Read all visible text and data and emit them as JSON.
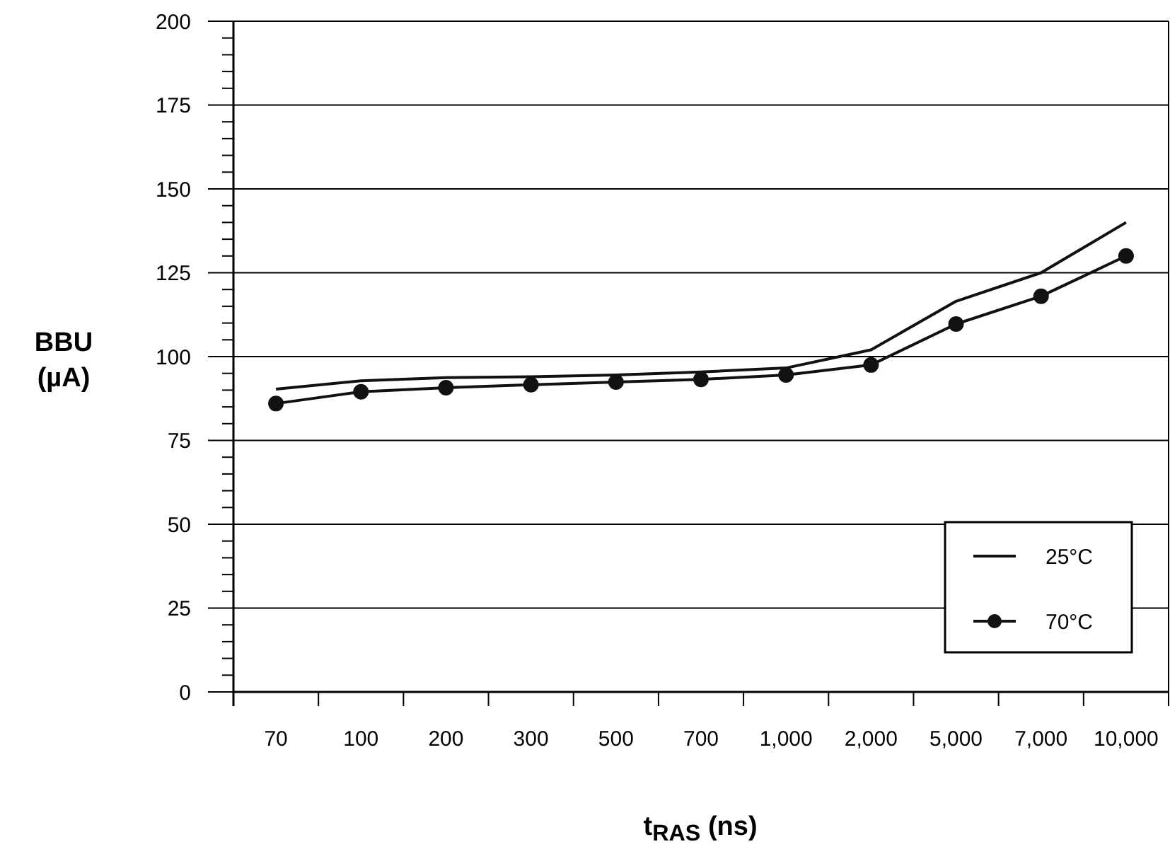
{
  "chart_data": {
    "type": "line",
    "xlabel": "t$_{RAS}$ (ns)",
    "ylabel": "BBU\n(µA)",
    "categories": [
      "70",
      "100",
      "200",
      "300",
      "500",
      "700",
      "1,000",
      "2,000",
      "5,000",
      "7,000",
      "10,000"
    ],
    "series": [
      {
        "name": "25°C",
        "color": "#111111",
        "marker": "none",
        "values": [
          90.3,
          92.8,
          93.7,
          94,
          94.5,
          95.4,
          96.6,
          102,
          116.5,
          125,
          140
        ]
      },
      {
        "name": "70°C",
        "color": "#111111",
        "marker": "circle",
        "values": [
          86,
          89.5,
          90.7,
          91.6,
          92.4,
          93.2,
          94.5,
          97.5,
          109.7,
          118,
          130
        ]
      }
    ],
    "ylim": [
      0,
      200
    ],
    "yticks": [
      0,
      {
        "value": 5,
        "label": null
      },
      {
        "value": 10,
        "label": null
      },
      {
        "value": 15,
        "label": null
      },
      {
        "value": 20,
        "label": null
      },
      25,
      {
        "value": 30,
        "label": null
      },
      {
        "value": 35,
        "label": null
      },
      {
        "value": 40,
        "label": null
      },
      {
        "value": 45,
        "label": null
      },
      50,
      {
        "value": 55,
        "label": null
      },
      {
        "value": 60,
        "label": null
      },
      {
        "value": 65,
        "label": null
      },
      {
        "value": 70,
        "label": null
      },
      75,
      {
        "value": 80,
        "label": null
      },
      {
        "value": 85,
        "label": null
      },
      {
        "value": 90,
        "label": null
      },
      {
        "value": 95,
        "label": null
      },
      100,
      {
        "value": 105,
        "label": null
      },
      {
        "value": 110,
        "label": null
      },
      {
        "value": 115,
        "label": null
      },
      {
        "value": 120,
        "label": null
      },
      125,
      {
        "value": 130,
        "label": null
      },
      {
        "value": 135,
        "label": null
      },
      {
        "value": 140,
        "label": null
      },
      {
        "value": 145,
        "label": null
      },
      150,
      {
        "value": 155,
        "label": null
      },
      {
        "value": 160,
        "label": null
      },
      {
        "value": 165,
        "label": null
      },
      {
        "value": 170,
        "label": null
      },
      175,
      {
        "value": 180,
        "label": null
      },
      {
        "value": 185,
        "label": null
      },
      {
        "value": 190,
        "label": null
      },
      {
        "value": 195,
        "label": null
      },
      200
    ],
    "grid": "y",
    "legend": "bottom right",
    "line_style": "solid"
  }
}
